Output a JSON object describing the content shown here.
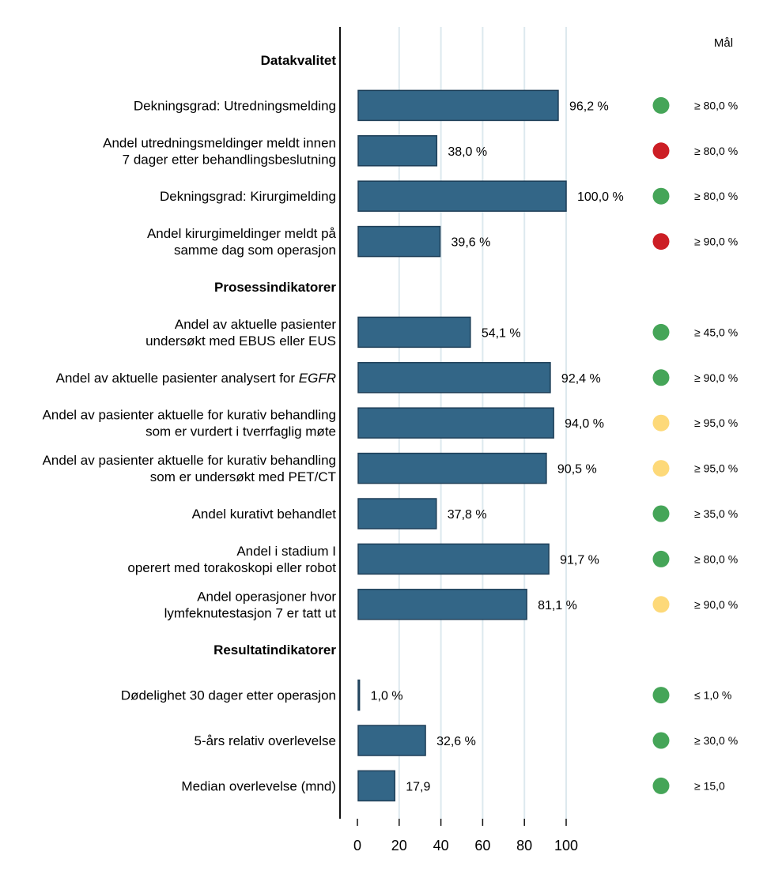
{
  "chart_data": {
    "type": "bar",
    "orientation": "horizontal",
    "title": "",
    "xlabel": "",
    "ylabel": "",
    "xlim": [
      0,
      100
    ],
    "x_ticks": [
      0,
      20,
      40,
      60,
      80,
      100
    ],
    "grid": true,
    "goal_header": "Mål",
    "colors": {
      "bar_fill": "#336687",
      "bar_edge": "#1e3f58",
      "grid": "#dde9ee",
      "green": "#45a558",
      "red": "#cc1e25",
      "yellow": "#fdd979"
    },
    "rows": [
      {
        "type": "section",
        "label": "Datakvalitet"
      },
      {
        "type": "bar",
        "label_lines": [
          "Dekningsgrad: Utredningsmelding"
        ],
        "value": 96.2,
        "value_label": "96,2 %",
        "status": "green",
        "goal": "≥ 80,0 %"
      },
      {
        "type": "bar",
        "label_lines": [
          "Andel utredningsmeldinger meldt innen",
          "7 dager etter behandlingsbeslutning"
        ],
        "value": 38.0,
        "value_label": "38,0 %",
        "status": "red",
        "goal": "≥ 80,0 %"
      },
      {
        "type": "bar",
        "label_lines": [
          "Dekningsgrad: Kirurgimelding"
        ],
        "value": 100.0,
        "value_label": "100,0 %",
        "status": "green",
        "goal": "≥ 80,0 %"
      },
      {
        "type": "bar",
        "label_lines": [
          "Andel kirurgimeldinger meldt på",
          "samme dag som operasjon"
        ],
        "value": 39.6,
        "value_label": "39,6 %",
        "status": "red",
        "goal": "≥ 90,0 %"
      },
      {
        "type": "section",
        "label": "Prosessindikatorer"
      },
      {
        "type": "bar",
        "label_lines": [
          "Andel av aktuelle pasienter",
          "undersøkt med EBUS eller EUS"
        ],
        "value": 54.1,
        "value_label": "54,1 %",
        "status": "green",
        "goal": "≥ 45,0 %"
      },
      {
        "type": "bar",
        "label_lines": [
          "Andel av aktuelle pasienter analysert for "
        ],
        "label_italic_suffix": "EGFR",
        "value": 92.4,
        "value_label": "92,4 %",
        "status": "green",
        "goal": "≥ 90,0 %"
      },
      {
        "type": "bar",
        "label_lines": [
          "Andel av pasienter aktuelle for kurativ behandling",
          "som er vurdert i tverrfaglig møte"
        ],
        "value": 94.0,
        "value_label": "94,0 %",
        "status": "yellow",
        "goal": "≥ 95,0 %"
      },
      {
        "type": "bar",
        "label_lines": [
          "Andel av pasienter aktuelle for kurativ behandling",
          "som er undersøkt med PET/CT"
        ],
        "value": 90.5,
        "value_label": "90,5 %",
        "status": "yellow",
        "goal": "≥ 95,0 %"
      },
      {
        "type": "bar",
        "label_lines": [
          "Andel kurativt behandlet"
        ],
        "value": 37.8,
        "value_label": "37,8 %",
        "status": "green",
        "goal": "≥ 35,0 %"
      },
      {
        "type": "bar",
        "label_lines": [
          "Andel i stadium I",
          "operert med torakoskopi eller robot"
        ],
        "value": 91.7,
        "value_label": "91,7 %",
        "status": "green",
        "goal": "≥ 80,0 %"
      },
      {
        "type": "bar",
        "label_lines": [
          "Andel operasjoner hvor",
          "lymfeknutestasjon 7 er tatt ut"
        ],
        "value": 81.1,
        "value_label": "81,1 %",
        "status": "yellow",
        "goal": "≥ 90,0 %"
      },
      {
        "type": "section",
        "label": "Resultatindikatorer"
      },
      {
        "type": "bar",
        "label_lines": [
          "Dødelighet 30 dager etter operasjon"
        ],
        "value": 1.0,
        "value_label": "1,0 %",
        "status": "green",
        "goal": "≤ 1,0 %"
      },
      {
        "type": "bar",
        "label_lines": [
          "5-års relativ overlevelse"
        ],
        "value": 32.6,
        "value_label": "32,6 %",
        "status": "green",
        "goal": "≥ 30,0 %"
      },
      {
        "type": "bar",
        "label_lines": [
          "Median overlevelse (mnd)"
        ],
        "value": 17.9,
        "value_label": "17,9",
        "status": "green",
        "goal": "≥ 15,0"
      }
    ]
  }
}
